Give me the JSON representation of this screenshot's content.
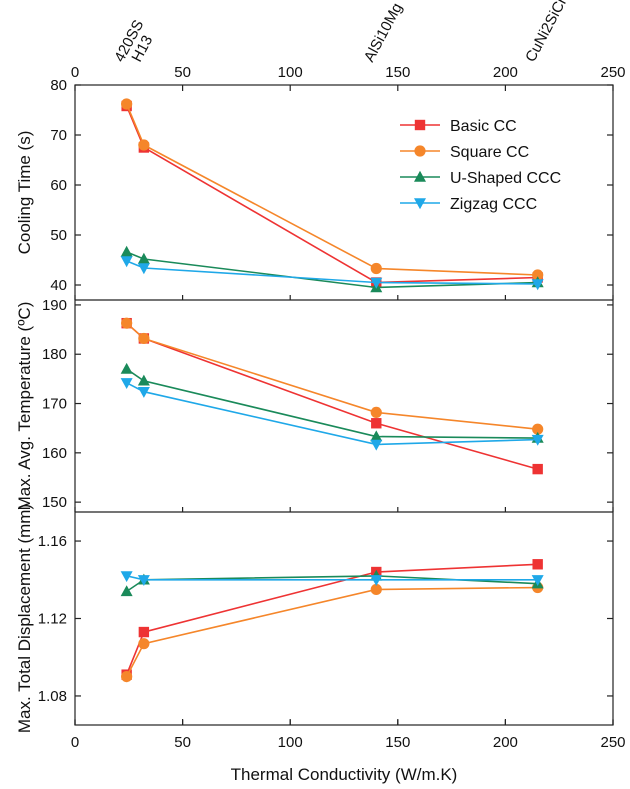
{
  "chart_data": {
    "type": "line",
    "x": [
      24,
      32,
      140,
      215
    ],
    "x_labels": [
      "420SS",
      "H13",
      "AlSi10Mg",
      "CuNi2SiCr"
    ],
    "xlabel": "Thermal Conductivity (W/m.K)",
    "xlim": [
      0,
      250
    ],
    "xticks": [
      0,
      50,
      100,
      150,
      200,
      250
    ],
    "legend": "top-right (in top panel)",
    "grid": false,
    "colors": {
      "Basic CC": "#ee3333",
      "Square CC": "#f5862a",
      "U-Shaped CCC": "#1a8a5a",
      "Zigzag CCC": "#1fa8e8"
    },
    "markers": {
      "Basic CC": "square",
      "Square CC": "circle",
      "U-Shaped CCC": "triangle-up",
      "Zigzag CCC": "triangle-down"
    },
    "panels": [
      {
        "ylabel": "Cooling Time (s)",
        "ylim": [
          37,
          80
        ],
        "yticks": [
          40,
          50,
          60,
          70,
          80
        ],
        "series": [
          {
            "name": "Basic CC",
            "values": [
              75.8,
              67.5,
              40.5,
              41.5
            ]
          },
          {
            "name": "Square CC",
            "values": [
              76.2,
              68.0,
              43.3,
              42.0
            ]
          },
          {
            "name": "U-Shaped CCC",
            "values": [
              46.6,
              45.2,
              39.5,
              40.5
            ]
          },
          {
            "name": "Zigzag CCC",
            "values": [
              44.8,
              43.4,
              40.5,
              40.2
            ]
          }
        ]
      },
      {
        "ylabel": "Max. Avg. Temperature (ºC)",
        "ylim": [
          148,
          191
        ],
        "yticks": [
          150,
          160,
          170,
          180,
          190
        ],
        "series": [
          {
            "name": "Basic CC",
            "values": [
              186.3,
              183.2,
              166.0,
              156.7
            ]
          },
          {
            "name": "Square CC",
            "values": [
              186.3,
              183.2,
              168.2,
              164.8
            ]
          },
          {
            "name": "U-Shaped CCC",
            "values": [
              177.0,
              174.6,
              163.3,
              163.0
            ]
          },
          {
            "name": "Zigzag CCC",
            "values": [
              174.2,
              172.4,
              161.7,
              162.7
            ]
          }
        ]
      },
      {
        "ylabel": "Max. Total Displacement (mm)",
        "ylim": [
          1.065,
          1.175
        ],
        "yticks": [
          1.08,
          1.12,
          1.16
        ],
        "ytick_format": "0.00",
        "series": [
          {
            "name": "Basic CC",
            "values": [
              1.091,
              1.113,
              1.144,
              1.148
            ]
          },
          {
            "name": "Square CC",
            "values": [
              1.09,
              1.107,
              1.135,
              1.136
            ]
          },
          {
            "name": "U-Shaped CCC",
            "values": [
              1.134,
              1.14,
              1.142,
              1.138
            ]
          },
          {
            "name": "Zigzag CCC",
            "values": [
              1.142,
              1.14,
              1.14,
              1.14
            ]
          }
        ]
      }
    ]
  }
}
